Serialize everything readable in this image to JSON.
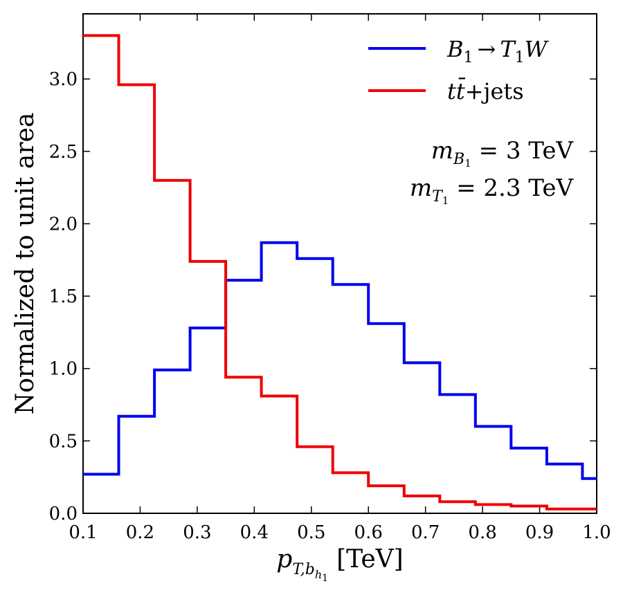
{
  "chart_data": {
    "type": "histogram",
    "bin_edges": [
      0.1,
      0.1625,
      0.225,
      0.2875,
      0.35,
      0.4125,
      0.475,
      0.5375,
      0.6,
      0.6625,
      0.725,
      0.7875,
      0.85,
      0.9125,
      0.975,
      1.0
    ],
    "series": [
      {
        "name": "B1 to T1W",
        "legend_parts": {
          "B": "B",
          "B_sub": "1",
          "arrow": "→",
          "T": "T",
          "T_sub": "1",
          "W": "W"
        },
        "color": "#0000ee",
        "values": [
          0.27,
          0.67,
          0.99,
          1.28,
          1.61,
          1.87,
          1.76,
          1.58,
          1.31,
          1.04,
          0.82,
          0.6,
          0.45,
          0.34,
          0.24
        ]
      },
      {
        "name": "ttbar+jets",
        "legend_parts": {
          "t1": "t",
          "t2": "t̄",
          "rest": "+jets"
        },
        "color": "#ee0000",
        "values": [
          3.3,
          2.96,
          2.3,
          1.74,
          0.94,
          0.81,
          0.46,
          0.28,
          0.19,
          0.12,
          0.08,
          0.06,
          0.05,
          0.03,
          0.03
        ]
      }
    ],
    "xlim": [
      0.1,
      1.0
    ],
    "ylim": [
      0.0,
      3.45
    ],
    "xticks": [
      0.1,
      0.2,
      0.3,
      0.4,
      0.5,
      0.6,
      0.7,
      0.8,
      0.9,
      1.0
    ],
    "xtick_labels": [
      "0.1",
      "0.2",
      "0.3",
      "0.4",
      "0.5",
      "0.6",
      "0.7",
      "0.8",
      "0.9",
      "1.0"
    ],
    "yticks": [
      0.0,
      0.5,
      1.0,
      1.5,
      2.0,
      2.5,
      3.0
    ],
    "ytick_labels": [
      "0.0",
      "0.5",
      "1.0",
      "1.5",
      "2.0",
      "2.5",
      "3.0"
    ],
    "xlabel": {
      "p": "p",
      "sub_T": "T,b",
      "sub_h": "h",
      "sub_1": "1",
      "unit": "[TeV]"
    },
    "ylabel": "Normalized to unit area",
    "annotations": {
      "line1": {
        "m": "m",
        "sub": "B",
        "sub2": "1",
        "rest": " = 3 TeV"
      },
      "line2": {
        "m": "m",
        "sub": "T",
        "sub2": "1",
        "rest": " = 2.3 TeV"
      }
    },
    "legend_position": "top-right"
  }
}
